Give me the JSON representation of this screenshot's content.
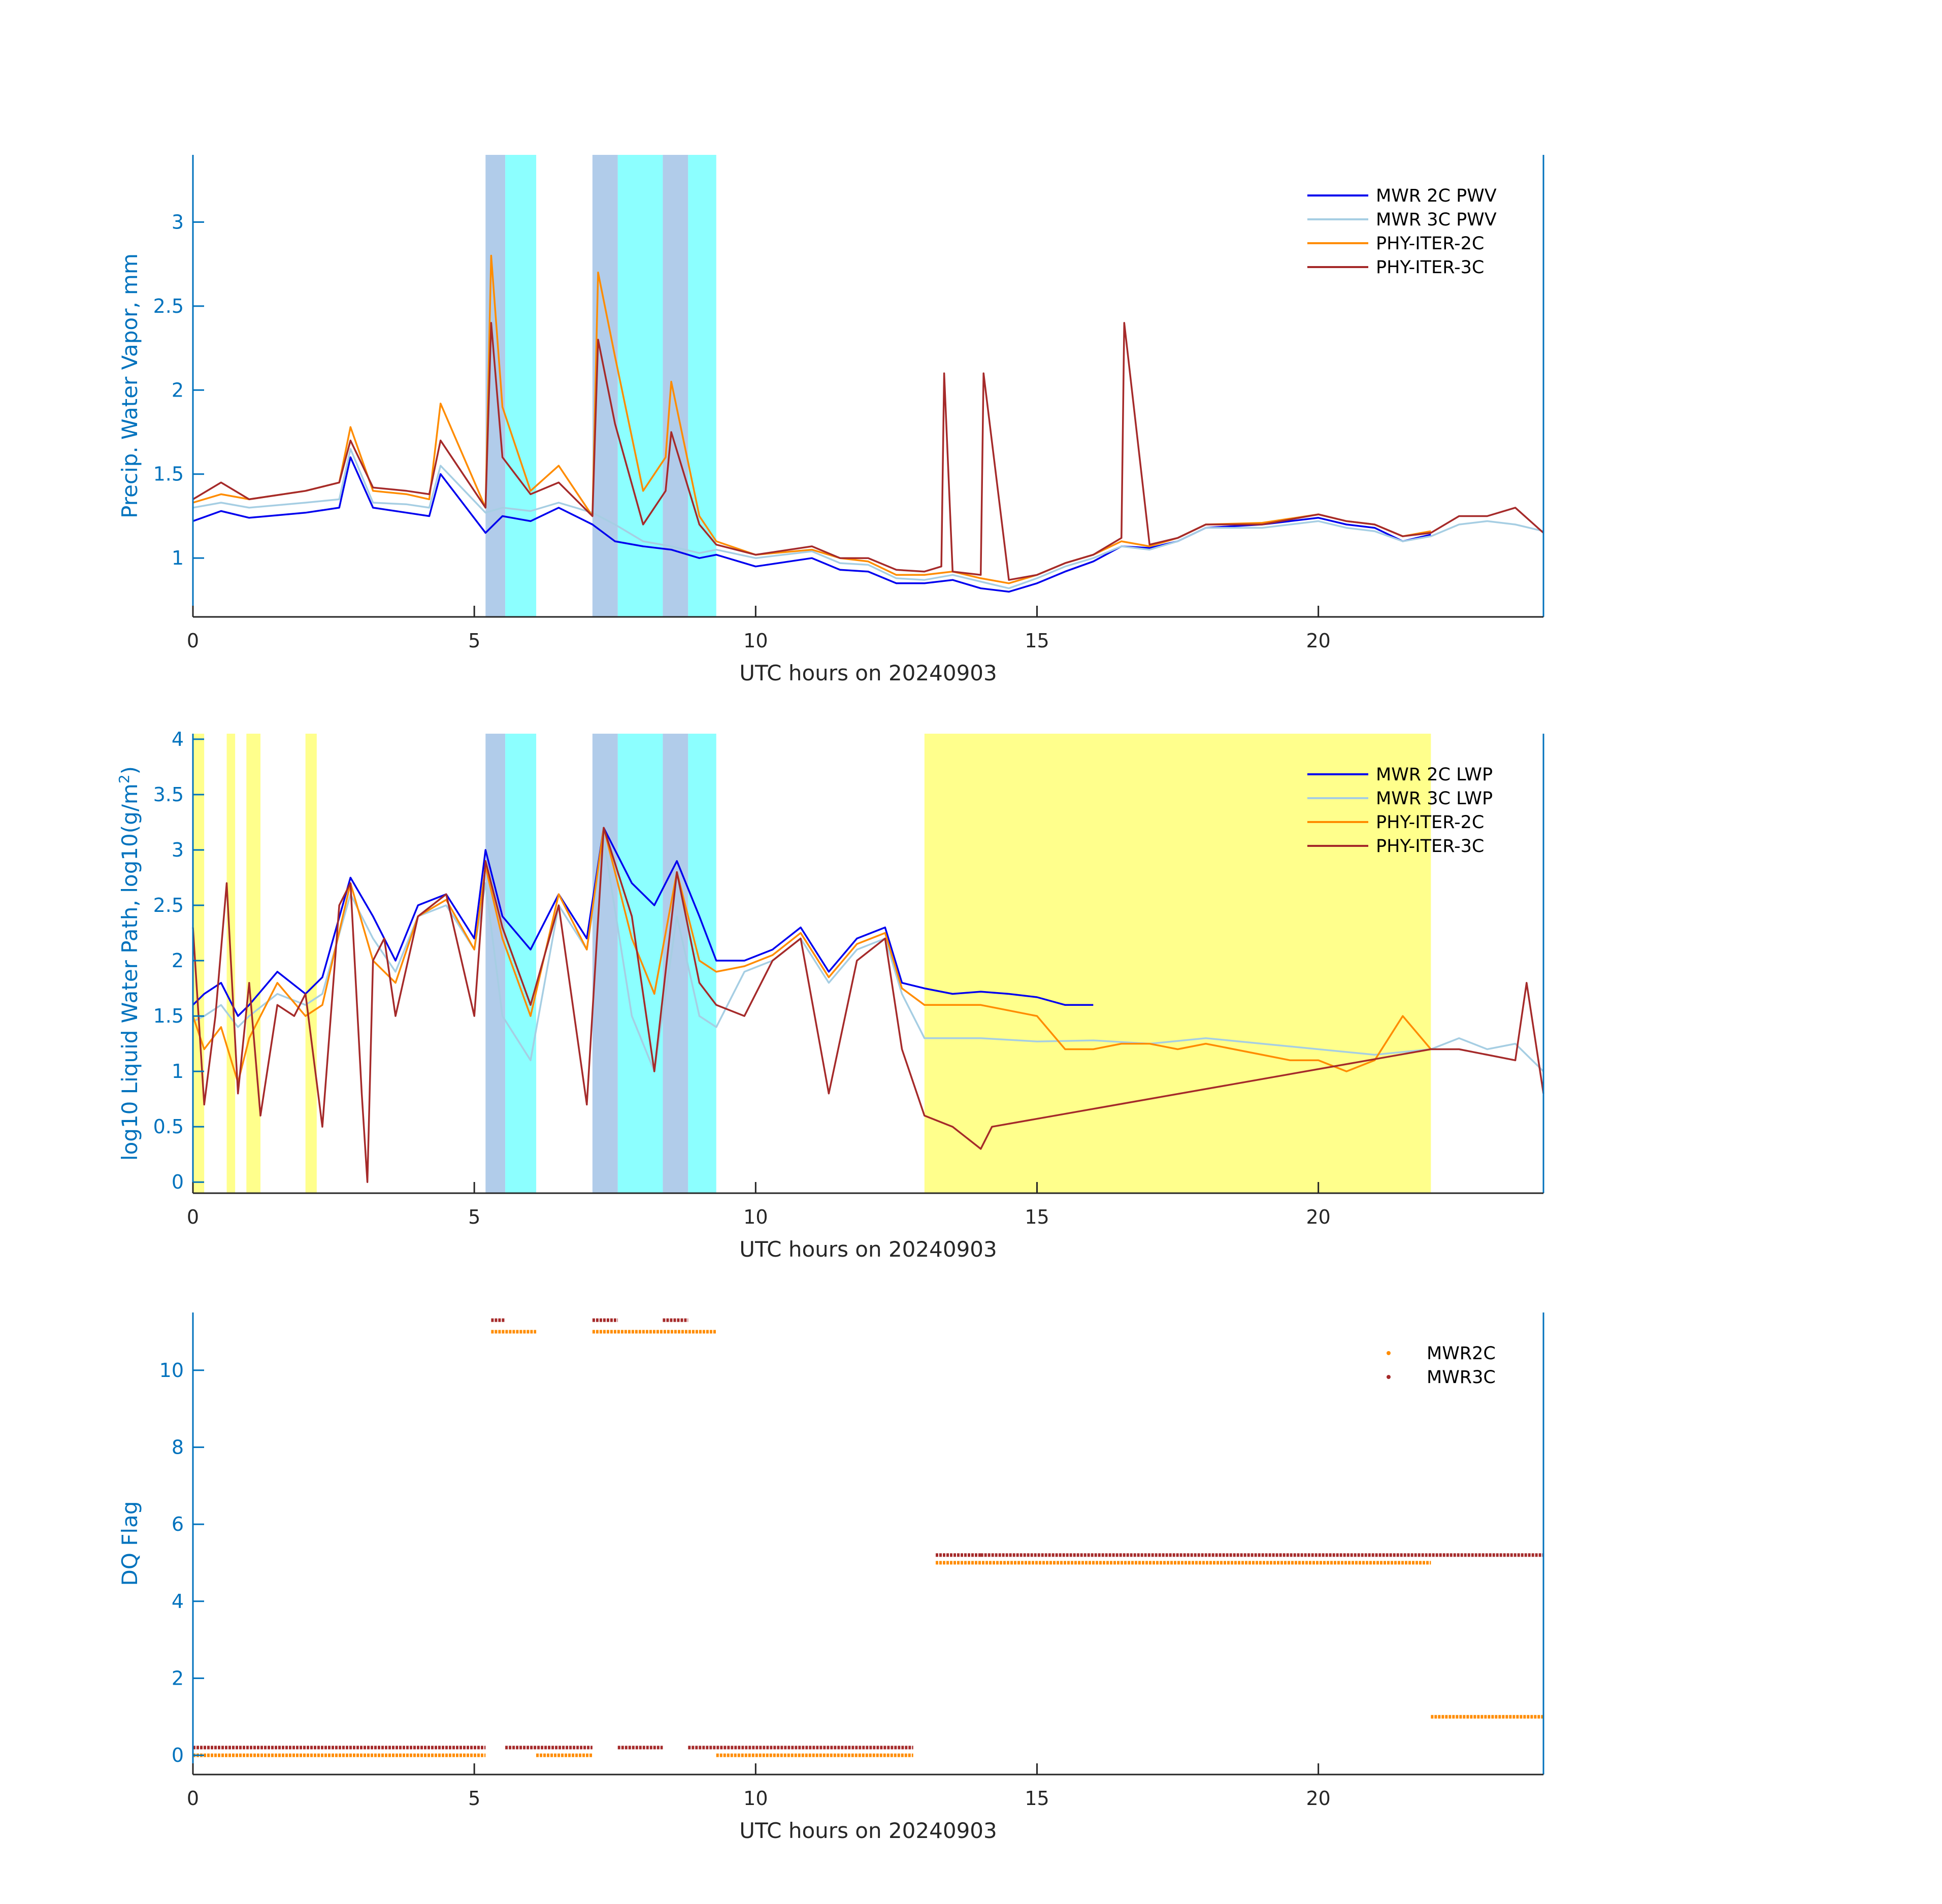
{
  "colors": {
    "axis_y": "#0072BD",
    "mwr_2c": "#0000EE",
    "mwr_3c": "#A6CEE3",
    "phy_iter_2c": "#FF8C00",
    "phy_iter_3c": "#A52A2A",
    "shade_blue": "#A9C6E8",
    "shade_cyan": "#7FFFFF",
    "shade_yellow": "#FFFF80",
    "flag_2c": "#FF8C00",
    "flag_3c": "#A52A2A"
  },
  "chart_data": [
    {
      "type": "line",
      "xlabel": "UTC hours on 20240903",
      "ylabel": "Precip. Water Vapor, mm",
      "xlim": [
        0,
        24
      ],
      "ylim": [
        0.65,
        3.4
      ],
      "xticks": [
        0,
        5,
        10,
        15,
        20
      ],
      "yticks": [
        1,
        1.5,
        2,
        2.5,
        3
      ],
      "legend_position": "top-right",
      "shaded_intervals": [
        {
          "x0": 5.2,
          "x1": 5.55,
          "color": "blue"
        },
        {
          "x0": 5.55,
          "x1": 6.1,
          "color": "cyan"
        },
        {
          "x0": 7.1,
          "x1": 7.55,
          "color": "blue"
        },
        {
          "x0": 7.55,
          "x1": 8.35,
          "color": "cyan"
        },
        {
          "x0": 8.35,
          "x1": 8.8,
          "color": "blue"
        },
        {
          "x0": 8.8,
          "x1": 9.3,
          "color": "cyan"
        }
      ],
      "series": [
        {
          "name": "MWR 2C PWV",
          "x": [
            0,
            0.5,
            1,
            2,
            2.6,
            2.8,
            3.2,
            3.8,
            4.2,
            4.4,
            5.2,
            5.5,
            6,
            6.5,
            7.1,
            7.5,
            8,
            8.5,
            9,
            9.3,
            10,
            11,
            11.5,
            12,
            12.5,
            13,
            13.5,
            14,
            14.5,
            15,
            15.5,
            16,
            16.5,
            17,
            17.5,
            18,
            19,
            20,
            20.5,
            21,
            21.5,
            22
          ],
          "values": [
            1.22,
            1.28,
            1.24,
            1.27,
            1.3,
            1.6,
            1.3,
            1.27,
            1.25,
            1.5,
            1.15,
            1.25,
            1.22,
            1.3,
            1.2,
            1.1,
            1.07,
            1.05,
            1.0,
            1.02,
            0.95,
            1.0,
            0.93,
            0.92,
            0.85,
            0.85,
            0.87,
            0.82,
            0.8,
            0.85,
            0.92,
            0.98,
            1.07,
            1.06,
            1.1,
            1.18,
            1.2,
            1.24,
            1.2,
            1.18,
            1.1,
            1.14
          ]
        },
        {
          "name": "MWR 3C PWV",
          "x": [
            0,
            0.5,
            1,
            2,
            2.6,
            2.8,
            3.2,
            3.8,
            4.2,
            4.4,
            5.2,
            5.5,
            6,
            6.5,
            7.1,
            7.5,
            8,
            8.5,
            9,
            9.3,
            10,
            11,
            11.5,
            12,
            12.5,
            13,
            13.5,
            14,
            14.5,
            15,
            15.5,
            16,
            16.5,
            17,
            17.5,
            18,
            19,
            20,
            20.5,
            21,
            21.5,
            22,
            22.5,
            23,
            23.5,
            24
          ],
          "values": [
            1.3,
            1.33,
            1.3,
            1.33,
            1.35,
            1.65,
            1.33,
            1.32,
            1.3,
            1.55,
            1.27,
            1.3,
            1.28,
            1.33,
            1.27,
            1.2,
            1.1,
            1.07,
            1.03,
            1.05,
            1.0,
            1.04,
            0.97,
            0.96,
            0.88,
            0.87,
            0.9,
            0.86,
            0.82,
            0.88,
            0.95,
            1.0,
            1.07,
            1.05,
            1.1,
            1.18,
            1.18,
            1.22,
            1.18,
            1.16,
            1.1,
            1.13,
            1.2,
            1.22,
            1.2,
            1.16
          ]
        },
        {
          "name": "PHY-ITER-2C",
          "x": [
            0,
            0.5,
            1,
            2,
            2.6,
            2.8,
            3.2,
            3.8,
            4.2,
            4.4,
            5.2,
            5.3,
            5.5,
            6,
            6.5,
            7.1,
            7.2,
            7.5,
            8,
            8.4,
            8.5,
            9,
            9.3,
            10,
            11,
            11.5,
            12,
            12.5,
            13,
            13.5,
            14,
            14.5,
            15,
            15.5,
            16,
            16.5,
            17,
            17.5,
            18,
            19,
            20,
            20.5,
            21,
            21.5,
            22
          ],
          "values": [
            1.33,
            1.38,
            1.35,
            1.4,
            1.45,
            1.78,
            1.4,
            1.38,
            1.35,
            1.92,
            1.3,
            2.8,
            1.9,
            1.4,
            1.55,
            1.25,
            2.7,
            2.2,
            1.4,
            1.6,
            2.05,
            1.25,
            1.1,
            1.02,
            1.05,
            1.0,
            0.98,
            0.9,
            0.9,
            0.92,
            0.88,
            0.85,
            0.9,
            0.97,
            1.02,
            1.1,
            1.07,
            1.12,
            1.2,
            1.21,
            1.26,
            1.22,
            1.2,
            1.13,
            1.16
          ]
        },
        {
          "name": "PHY-ITER-3C",
          "x": [
            0,
            0.5,
            1,
            2,
            2.6,
            2.8,
            3.2,
            3.8,
            4.2,
            4.4,
            5.2,
            5.3,
            5.5,
            6,
            6.5,
            7.1,
            7.2,
            7.5,
            8,
            8.4,
            8.5,
            9,
            9.3,
            10,
            11,
            11.5,
            12,
            12.5,
            13,
            13.3,
            13.35,
            13.5,
            14,
            14.05,
            14.5,
            15,
            15.5,
            16,
            16.5,
            16.55,
            17,
            17.5,
            18,
            19,
            20,
            20.5,
            21,
            21.5,
            22,
            22.5,
            23,
            23.5,
            24
          ],
          "values": [
            1.35,
            1.45,
            1.35,
            1.4,
            1.45,
            1.7,
            1.42,
            1.4,
            1.38,
            1.7,
            1.3,
            2.4,
            1.6,
            1.38,
            1.45,
            1.25,
            2.3,
            1.8,
            1.2,
            1.4,
            1.75,
            1.2,
            1.08,
            1.02,
            1.07,
            1.0,
            1.0,
            0.93,
            0.92,
            0.95,
            2.1,
            0.92,
            0.9,
            2.1,
            0.87,
            0.9,
            0.97,
            1.02,
            1.12,
            2.4,
            1.08,
            1.12,
            1.2,
            1.2,
            1.26,
            1.22,
            1.2,
            1.13,
            1.15,
            1.25,
            1.25,
            1.3,
            1.15
          ]
        }
      ]
    },
    {
      "type": "line",
      "xlabel": "UTC hours on 20240903",
      "ylabel": "log10 Liquid Water Path, log10(g/m",
      "ylabel_superscript": "2",
      "ylabel_close": ")",
      "xlim": [
        0,
        24
      ],
      "ylim": [
        -0.1,
        4.05
      ],
      "xticks": [
        0,
        5,
        10,
        15,
        20
      ],
      "yticks": [
        0,
        0.5,
        1,
        1.5,
        2,
        2.5,
        3,
        3.5,
        4
      ],
      "legend_position": "top-right",
      "shaded_intervals": [
        {
          "x0": 0,
          "x1": 0.2,
          "color": "yellow"
        },
        {
          "x0": 0.6,
          "x1": 0.75,
          "color": "yellow"
        },
        {
          "x0": 0.95,
          "x1": 1.2,
          "color": "yellow"
        },
        {
          "x0": 2.0,
          "x1": 2.2,
          "color": "yellow"
        },
        {
          "x0": 5.2,
          "x1": 5.55,
          "color": "blue"
        },
        {
          "x0": 5.55,
          "x1": 6.1,
          "color": "cyan"
        },
        {
          "x0": 7.1,
          "x1": 7.55,
          "color": "blue"
        },
        {
          "x0": 7.55,
          "x1": 8.35,
          "color": "cyan"
        },
        {
          "x0": 8.35,
          "x1": 8.8,
          "color": "blue"
        },
        {
          "x0": 8.8,
          "x1": 9.3,
          "color": "cyan"
        },
        {
          "x0": 13.0,
          "x1": 22.0,
          "color": "yellow"
        }
      ],
      "series": [
        {
          "name": "MWR 2C LWP",
          "x": [
            0,
            0.2,
            0.5,
            0.8,
            1,
            1.5,
            2,
            2.3,
            2.8,
            3.2,
            3.6,
            4,
            4.5,
            5,
            5.2,
            5.5,
            6,
            6.5,
            7,
            7.3,
            7.8,
            8.2,
            8.6,
            9,
            9.3,
            9.8,
            10.3,
            10.8,
            11.3,
            11.8,
            12.3,
            12.6,
            13,
            13.5,
            14,
            14.5,
            15,
            15.5,
            16
          ],
          "values": [
            1.6,
            1.7,
            1.8,
            1.5,
            1.6,
            1.9,
            1.7,
            1.85,
            2.75,
            2.4,
            2.0,
            2.5,
            2.6,
            2.2,
            3.0,
            2.4,
            2.1,
            2.6,
            2.2,
            3.2,
            2.7,
            2.5,
            2.9,
            2.4,
            2.0,
            2.0,
            2.1,
            2.3,
            1.9,
            2.2,
            2.3,
            1.8,
            1.75,
            1.7,
            1.72,
            1.7,
            1.67,
            1.6,
            1.6
          ]
        },
        {
          "name": "MWR 3C LWP",
          "x": [
            0,
            0.2,
            0.5,
            0.8,
            1,
            1.5,
            2,
            2.3,
            2.8,
            3.2,
            3.6,
            4,
            4.5,
            5,
            5.2,
            5.5,
            6,
            6.5,
            7,
            7.3,
            7.8,
            8.2,
            8.6,
            9,
            9.3,
            9.8,
            10.3,
            10.8,
            11.3,
            11.8,
            12.3,
            12.6,
            13,
            14,
            15,
            16,
            17,
            18,
            19,
            20,
            21,
            22,
            22.5,
            23,
            23.5,
            24
          ],
          "values": [
            1.45,
            1.5,
            1.6,
            1.4,
            1.5,
            1.7,
            1.6,
            1.7,
            2.6,
            2.2,
            1.9,
            2.4,
            2.5,
            2.1,
            2.7,
            1.5,
            1.1,
            2.5,
            2.1,
            3.1,
            1.5,
            1.0,
            2.4,
            1.5,
            1.4,
            1.9,
            2.0,
            2.2,
            1.8,
            2.1,
            2.2,
            1.7,
            1.3,
            1.3,
            1.27,
            1.28,
            1.25,
            1.3,
            1.25,
            1.2,
            1.15,
            1.2,
            1.3,
            1.2,
            1.25,
            1.0
          ]
        },
        {
          "name": "PHY-ITER-2C",
          "x": [
            0,
            0.2,
            0.5,
            0.8,
            1,
            1.5,
            2,
            2.3,
            2.8,
            3.2,
            3.6,
            4,
            4.5,
            5,
            5.2,
            5.5,
            6,
            6.5,
            7,
            7.3,
            7.8,
            8.2,
            8.6,
            9,
            9.3,
            9.8,
            10.3,
            10.8,
            11.3,
            11.8,
            12.3,
            12.6,
            13,
            13.5,
            14,
            14.5,
            15,
            15.5,
            16,
            16.5,
            17,
            17.5,
            18,
            18.5,
            19,
            19.5,
            20,
            20.5,
            21,
            21.5,
            22
          ],
          "values": [
            1.5,
            1.2,
            1.4,
            0.9,
            1.3,
            1.8,
            1.5,
            1.6,
            2.7,
            2.0,
            1.8,
            2.4,
            2.55,
            2.1,
            2.85,
            2.2,
            1.5,
            2.6,
            2.1,
            3.2,
            2.2,
            1.7,
            2.8,
            2.0,
            1.9,
            1.95,
            2.05,
            2.25,
            1.85,
            2.15,
            2.25,
            1.75,
            1.6,
            1.6,
            1.6,
            1.55,
            1.5,
            1.2,
            1.2,
            1.25,
            1.25,
            1.2,
            1.25,
            1.2,
            1.15,
            1.1,
            1.1,
            1.0,
            1.1,
            1.5,
            1.2
          ]
        },
        {
          "name": "PHY-ITER-3C",
          "x": [
            0,
            0.2,
            0.4,
            0.6,
            0.8,
            1,
            1.2,
            1.5,
            1.8,
            2,
            2.3,
            2.6,
            2.8,
            3,
            3.1,
            3.2,
            3.4,
            3.6,
            4,
            4.5,
            5,
            5.2,
            5.5,
            6,
            6.5,
            7,
            7.3,
            7.8,
            8.2,
            8.6,
            9,
            9.3,
            9.8,
            10.3,
            10.8,
            11.3,
            11.8,
            12.3,
            12.6,
            13,
            13.5,
            14,
            14.2,
            22,
            22.5,
            23,
            23.5,
            23.7,
            24
          ],
          "values": [
            2.3,
            0.7,
            1.5,
            2.7,
            0.8,
            1.8,
            0.6,
            1.6,
            1.5,
            1.7,
            0.5,
            2.5,
            2.7,
            0.8,
            0.0,
            2.0,
            2.2,
            1.5,
            2.4,
            2.6,
            1.5,
            2.9,
            2.3,
            1.6,
            2.5,
            0.7,
            3.2,
            2.4,
            1.0,
            2.8,
            1.8,
            1.6,
            1.5,
            2.0,
            2.2,
            0.8,
            2.0,
            2.2,
            1.2,
            0.6,
            0.5,
            0.3,
            0.5,
            1.2,
            1.2,
            1.15,
            1.1,
            1.8,
            0.8
          ]
        }
      ]
    },
    {
      "type": "scatter",
      "xlabel": "UTC hours on 20240903",
      "ylabel": "DQ Flag",
      "xlim": [
        0,
        24
      ],
      "ylim": [
        -0.5,
        11.5
      ],
      "xticks": [
        0,
        5,
        10,
        15,
        20
      ],
      "yticks": [
        0,
        2,
        4,
        6,
        8,
        10
      ],
      "legend_position": "top-right",
      "series": [
        {
          "name": "MWR2C",
          "segments": [
            {
              "x0": 0,
              "x1": 5.2,
              "y": 0
            },
            {
              "x0": 5.3,
              "x1": 6.1,
              "y": 11
            },
            {
              "x0": 6.1,
              "x1": 7.1,
              "y": 0
            },
            {
              "x0": 7.1,
              "x1": 9.3,
              "y": 11
            },
            {
              "x0": 9.3,
              "x1": 12.8,
              "y": 0
            },
            {
              "x0": 13.2,
              "x1": 22.0,
              "y": 5
            },
            {
              "x0": 22.0,
              "x1": 24.0,
              "y": 1
            }
          ]
        },
        {
          "name": "MWR3C",
          "segments": [
            {
              "x0": 0,
              "x1": 5.2,
              "y": 0.2
            },
            {
              "x0": 5.3,
              "x1": 5.55,
              "y": 11.3
            },
            {
              "x0": 5.55,
              "x1": 7.1,
              "y": 0.2
            },
            {
              "x0": 7.1,
              "x1": 7.55,
              "y": 11.3
            },
            {
              "x0": 7.55,
              "x1": 8.35,
              "y": 0.2
            },
            {
              "x0": 8.35,
              "x1": 8.8,
              "y": 11.3
            },
            {
              "x0": 8.8,
              "x1": 12.8,
              "y": 0.2
            },
            {
              "x0": 13.2,
              "x1": 14.0,
              "y": 5.2
            },
            {
              "x0": 14.0,
              "x1": 24.0,
              "y": 5.2
            }
          ]
        }
      ]
    }
  ]
}
